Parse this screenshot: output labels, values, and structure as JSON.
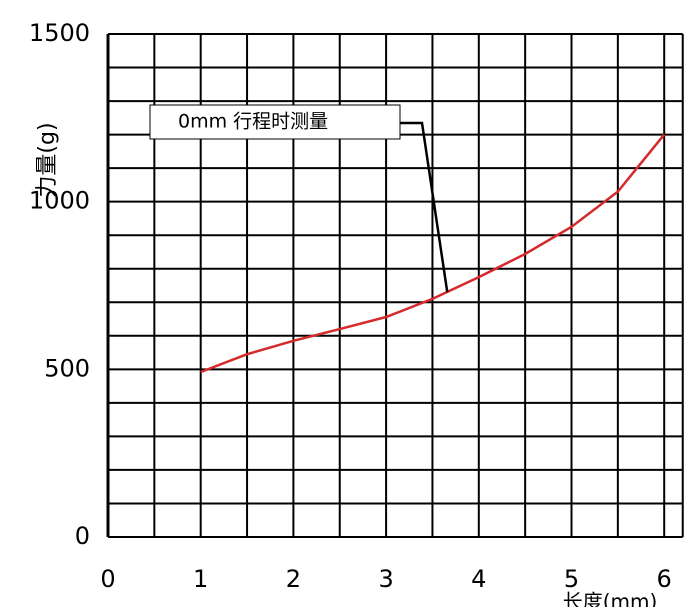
{
  "chart_data": {
    "type": "line",
    "ylabel": "力量(g)",
    "xlabel": "长度(mm)",
    "x": [
      1,
      1.5,
      2,
      2.5,
      3,
      3.5,
      4,
      4.5,
      5,
      5.5,
      6
    ],
    "series": [
      {
        "color": "#d42a2a",
        "values": [
          492,
          545,
          585,
          620,
          656,
          710,
          775,
          844,
          925,
          1030,
          1200
        ]
      }
    ],
    "xlim": [
      0,
      6.2
    ],
    "ylim": [
      0,
      1500
    ],
    "xticks": [
      0,
      1,
      2,
      3,
      4,
      5,
      6
    ],
    "yticks": [
      0,
      500,
      1000,
      1500
    ],
    "x_gridlines": [
      0,
      0.5,
      1,
      1.5,
      2,
      2.5,
      3,
      3.5,
      4,
      4.5,
      5,
      5.5,
      6,
      6.2
    ],
    "y_gridlines": [
      0,
      100,
      200,
      300,
      400,
      500,
      600,
      700,
      800,
      900,
      1000,
      1100,
      1200,
      1300,
      1400,
      1500
    ],
    "annotation": {
      "text": "0mm 行程时测量",
      "xy": [
        3.66,
        730
      ]
    }
  }
}
